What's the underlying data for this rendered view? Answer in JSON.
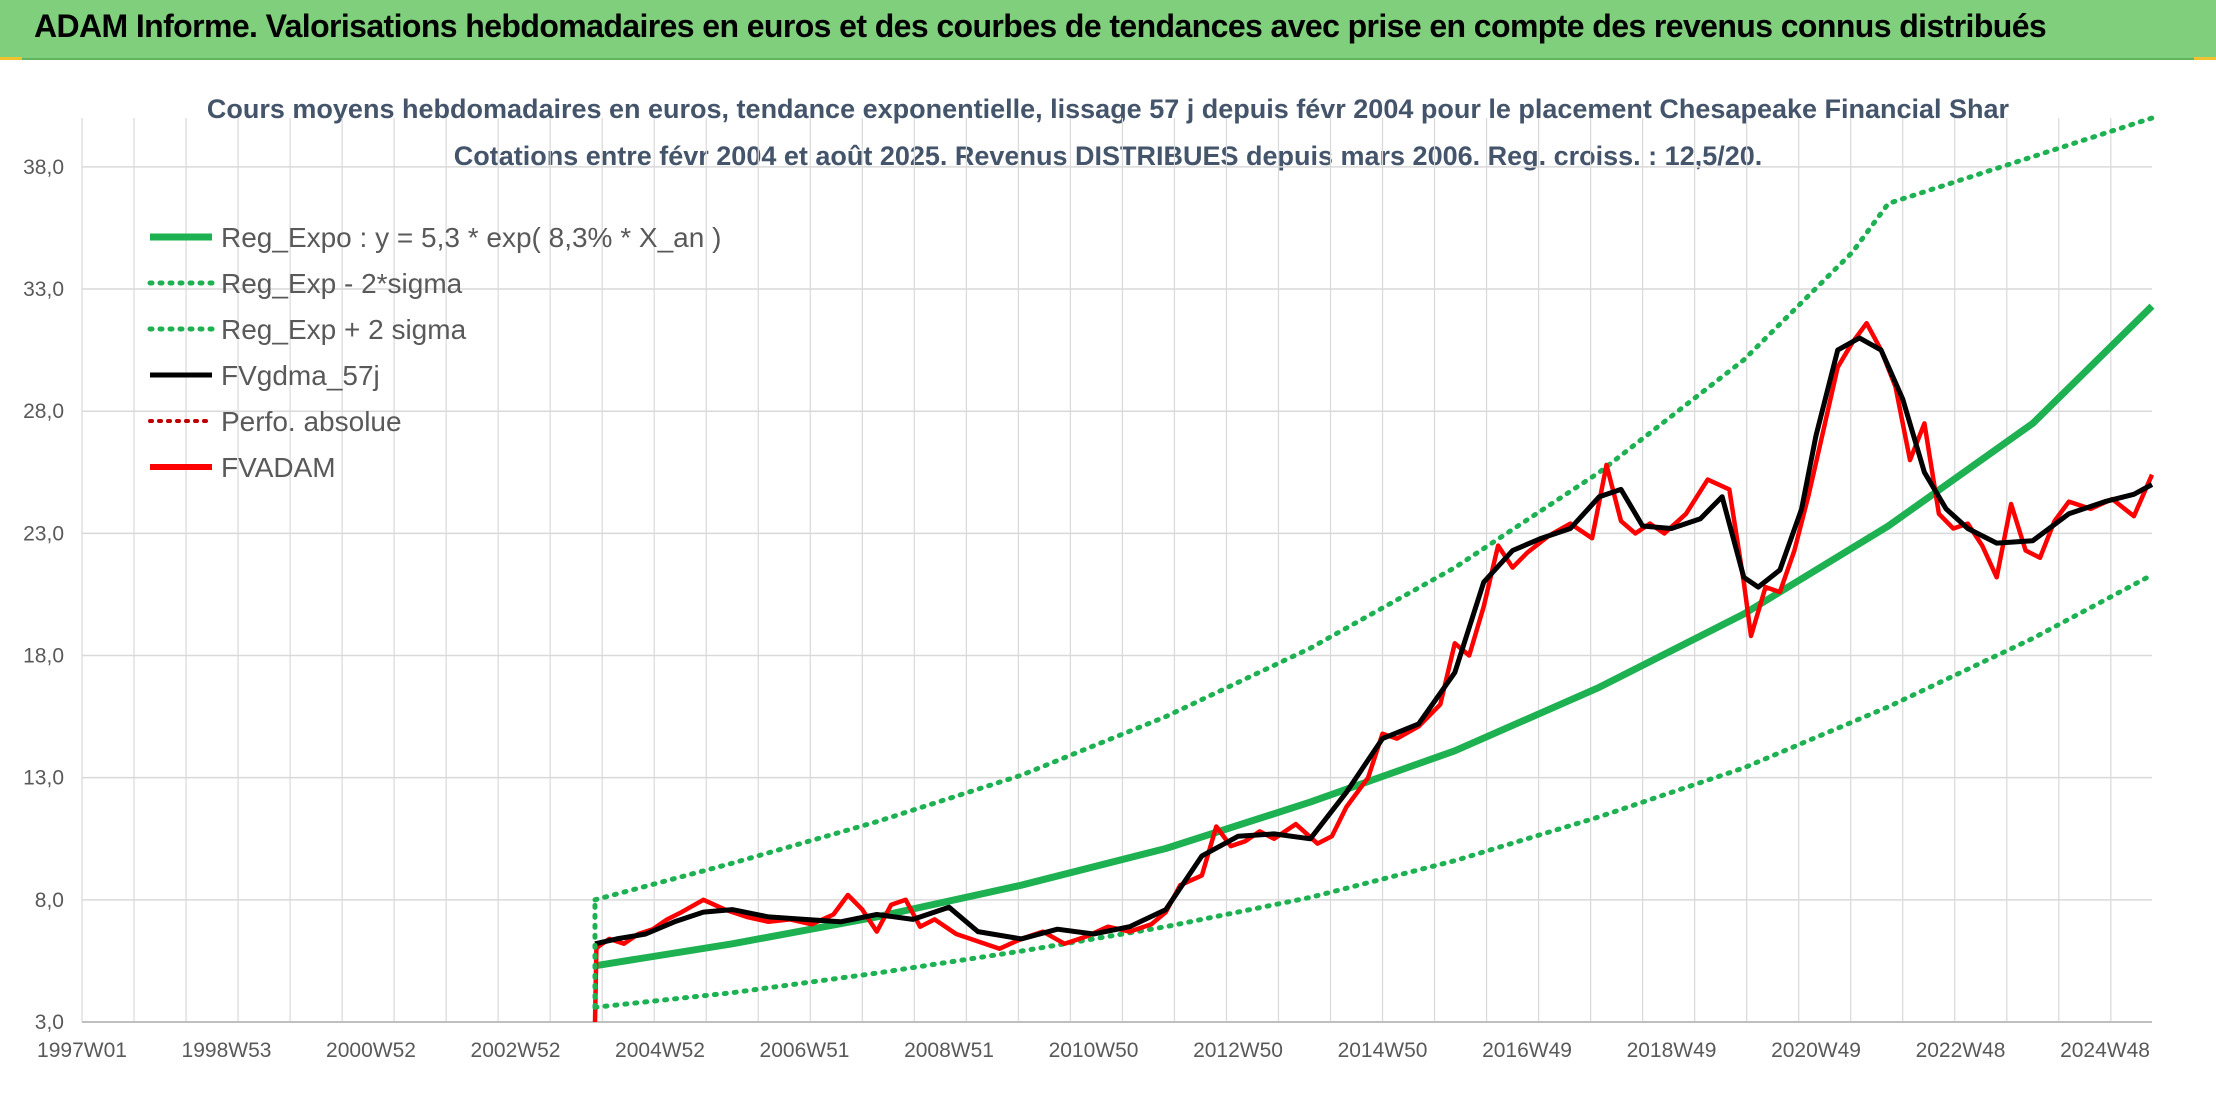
{
  "banner": {
    "title": "ADAM Informe. Valorisations hebdomadaires en euros et des courbes de tendances avec prise en compte des revenus connus distribués"
  },
  "colors": {
    "banner_bg": "#7fcf7c",
    "reg_expo": "#1db152",
    "sigma": "#1db152",
    "fvgdma": "#000000",
    "perfo": "#c00000",
    "fvadam": "#ff0000",
    "grid": "#d9d9d9"
  },
  "chart_data": {
    "type": "line",
    "title_lines": [
      "Cours moyens hebdomadaires en euros, tendance exponentielle, lissage 57 j depuis févr 2004 pour le placement Chesapeake Financial Shar",
      "Cotations entre févr 2004 et août 2025. Revenus DISTRIBUES depuis mars 2006. Reg. croiss. : 12,5/20."
    ],
    "x_ticks": [
      "1997W01",
      "1998W53",
      "2000W52",
      "2002W52",
      "2004W52",
      "2006W51",
      "2008W51",
      "2010W50",
      "2012W50",
      "2014W50",
      "2016W49",
      "2018W49",
      "2020W49",
      "2022W48",
      "2024W48"
    ],
    "x_range": [
      1997.0,
      2025.65
    ],
    "y_ticks": [
      "3,0",
      "8,0",
      "13,0",
      "18,0",
      "23,0",
      "28,0",
      "33,0",
      "38,0"
    ],
    "ylim": [
      3,
      40
    ],
    "grid": true,
    "legend_position": "top-left",
    "legend": [
      {
        "label": "Reg_Expo : y = 5,3 * exp( 8,3% *  X_an )",
        "style": "solid-green"
      },
      {
        "label": "Reg_Exp - 2*sigma",
        "style": "dotted-green"
      },
      {
        "label": "Reg_Exp + 2 sigma",
        "style": "dotted-green"
      },
      {
        "label": "FVgdma_57j",
        "style": "solid-black"
      },
      {
        "label": "Perfo. absolue",
        "style": "dotted-red"
      },
      {
        "label": "FVADAM",
        "style": "solid-red"
      }
    ],
    "series": [
      {
        "name": "Reg_Expo : y = 5,3 * exp( 8,3% *  X_an )",
        "x": [
          2004.1,
          2006.0,
          2008.0,
          2010.0,
          2012.0,
          2014.0,
          2016.0,
          2018.0,
          2020.0,
          2022.0,
          2024.0,
          2025.65
        ],
        "y": [
          5.3,
          6.2,
          7.3,
          8.6,
          10.1,
          12.0,
          14.1,
          16.7,
          19.7,
          23.3,
          27.5,
          32.3
        ]
      },
      {
        "name": "Reg_Exp - 2*sigma",
        "x": [
          2004.1,
          2006.0,
          2008.0,
          2010.0,
          2012.0,
          2014.0,
          2016.0,
          2018.0,
          2020.0,
          2022.0,
          2024.0,
          2025.65
        ],
        "y": [
          3.6,
          4.2,
          5.0,
          5.9,
          6.9,
          8.1,
          9.6,
          11.4,
          13.4,
          15.9,
          18.7,
          21.3
        ]
      },
      {
        "name": "Reg_Exp + 2 sigma",
        "x": [
          2004.1,
          2006.0,
          2008.0,
          2010.0,
          2012.0,
          2014.0,
          2016.0,
          2018.0,
          2020.0,
          2021.5,
          2022.0,
          2025.65
        ],
        "y": [
          8.0,
          9.5,
          11.2,
          13.1,
          15.5,
          18.3,
          21.6,
          25.5,
          30.1,
          34.5,
          36.5,
          40.0
        ]
      },
      {
        "name": "FVgdma_57j",
        "x": [
          2004.1,
          2004.4,
          2004.8,
          2005.2,
          2005.6,
          2006.0,
          2006.5,
          2007.0,
          2007.5,
          2008.0,
          2008.5,
          2009.0,
          2009.4,
          2010.0,
          2010.5,
          2011.0,
          2011.5,
          2012.0,
          2012.5,
          2013.0,
          2013.5,
          2014.0,
          2014.5,
          2015.0,
          2015.5,
          2016.0,
          2016.4,
          2016.8,
          2017.2,
          2017.6,
          2018.0,
          2018.3,
          2018.6,
          2019.0,
          2019.4,
          2019.7,
          2020.0,
          2020.2,
          2020.5,
          2020.8,
          2021.0,
          2021.3,
          2021.6,
          2021.9,
          2022.2,
          2022.5,
          2022.8,
          2023.1,
          2023.5,
          2024.0,
          2024.5,
          2025.0,
          2025.4,
          2025.65
        ],
        "y": [
          6.2,
          6.4,
          6.6,
          7.1,
          7.5,
          7.6,
          7.3,
          7.2,
          7.1,
          7.4,
          7.2,
          7.7,
          6.7,
          6.4,
          6.8,
          6.6,
          6.9,
          7.6,
          9.8,
          10.6,
          10.7,
          10.5,
          12.4,
          14.6,
          15.2,
          17.3,
          21.0,
          22.3,
          22.8,
          23.2,
          24.5,
          24.8,
          23.3,
          23.2,
          23.6,
          24.5,
          21.2,
          20.8,
          21.5,
          24.0,
          27.0,
          30.5,
          31.0,
          30.5,
          28.5,
          25.5,
          24.0,
          23.2,
          22.6,
          22.7,
          23.8,
          24.3,
          24.6,
          25.0
        ]
      },
      {
        "name": "FVADAM",
        "x": [
          2004.1,
          2004.12,
          2004.15,
          2004.3,
          2004.5,
          2004.7,
          2004.9,
          2005.1,
          2005.3,
          2005.6,
          2005.9,
          2006.2,
          2006.5,
          2006.8,
          2007.1,
          2007.4,
          2007.6,
          2007.8,
          2008.0,
          2008.2,
          2008.4,
          2008.6,
          2008.8,
          2009.1,
          2009.4,
          2009.7,
          2010.0,
          2010.3,
          2010.6,
          2010.9,
          2011.2,
          2011.5,
          2011.8,
          2012.0,
          2012.2,
          2012.5,
          2012.7,
          2012.9,
          2013.1,
          2013.3,
          2013.5,
          2013.8,
          2014.1,
          2014.3,
          2014.5,
          2014.8,
          2015.0,
          2015.2,
          2015.5,
          2015.8,
          2016.0,
          2016.2,
          2016.4,
          2016.6,
          2016.8,
          2017.0,
          2017.3,
          2017.6,
          2017.9,
          2018.1,
          2018.3,
          2018.5,
          2018.7,
          2018.9,
          2019.2,
          2019.5,
          2019.8,
          2020.0,
          2020.1,
          2020.3,
          2020.5,
          2020.7,
          2020.9,
          2021.1,
          2021.3,
          2021.5,
          2021.7,
          2021.9,
          2022.1,
          2022.3,
          2022.5,
          2022.7,
          2022.9,
          2023.1,
          2023.3,
          2023.5,
          2023.7,
          2023.9,
          2024.1,
          2024.3,
          2024.5,
          2024.8,
          2025.1,
          2025.4,
          2025.65
        ],
        "y": [
          3.0,
          6.0,
          6.1,
          6.4,
          6.2,
          6.6,
          6.8,
          7.2,
          7.5,
          8.0,
          7.6,
          7.3,
          7.1,
          7.2,
          7.0,
          7.4,
          8.2,
          7.6,
          6.7,
          7.8,
          8.0,
          6.9,
          7.2,
          6.6,
          6.3,
          6.0,
          6.4,
          6.7,
          6.2,
          6.5,
          6.9,
          6.7,
          7.0,
          7.5,
          8.6,
          9.0,
          11.0,
          10.2,
          10.4,
          10.8,
          10.5,
          11.1,
          10.3,
          10.6,
          11.8,
          13.0,
          14.8,
          14.6,
          15.1,
          16.0,
          18.5,
          18.0,
          20.0,
          22.5,
          21.6,
          22.2,
          22.9,
          23.4,
          22.8,
          25.8,
          23.5,
          23.0,
          23.4,
          23.0,
          23.8,
          25.2,
          24.8,
          21.0,
          18.8,
          20.8,
          20.6,
          22.3,
          24.6,
          27.2,
          29.8,
          30.8,
          31.6,
          30.5,
          29.0,
          26.0,
          27.5,
          23.8,
          23.2,
          23.4,
          22.5,
          21.2,
          24.2,
          22.3,
          22.0,
          23.5,
          24.3,
          24.0,
          24.4,
          23.7,
          25.4
        ]
      }
    ]
  }
}
